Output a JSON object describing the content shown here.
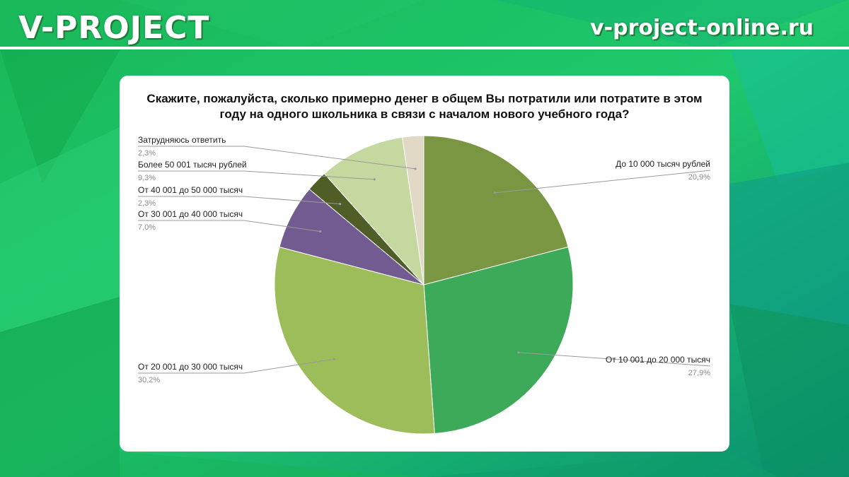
{
  "header": {
    "brand": "V-PROJECT",
    "site": "v-project-online.ru"
  },
  "colors": {
    "background_light": "#1ec76a",
    "background_dark": "#0c9a6e",
    "card": "#ffffff"
  },
  "chart_data": {
    "type": "pie",
    "title": "Скажите, пожалуйста, сколько примерно денег в общем Вы потратили или потратите в этом году на одного школьника в связи с началом нового учебного года?",
    "slices": [
      {
        "label": "До 10 000 тысяч рублей",
        "value": 20.9,
        "value_label": "20,9%",
        "color": "#7a9642",
        "label_side": "right"
      },
      {
        "label": "От 10 001 до 20 000 тысяч",
        "value": 27.9,
        "value_label": "27,9%",
        "color": "#3daa59",
        "label_side": "right"
      },
      {
        "label": "От 20 001 до 30 000 тысяч",
        "value": 30.2,
        "value_label": "30,2%",
        "color": "#9dbd5a",
        "label_side": "left"
      },
      {
        "label": "От 30 001 до 40 000 тысяч",
        "value": 7.0,
        "value_label": "7,0%",
        "color": "#725b91",
        "label_side": "left"
      },
      {
        "label": "От 40 001 до 50 000 тысяч",
        "value": 2.3,
        "value_label": "2,3%",
        "color": "#4f5e27",
        "label_side": "left"
      },
      {
        "label": "Более 50 001 тысяч рублей",
        "value": 9.3,
        "value_label": "9,3%",
        "color": "#c5d8a0",
        "label_side": "left"
      },
      {
        "label": "Затрудняюсь ответить",
        "value": 2.3,
        "value_label": "2,3%",
        "color": "#e2d8c6",
        "label_side": "left"
      }
    ],
    "start_angle": "12 o'clock",
    "direction": "clockwise",
    "legend": "none"
  }
}
